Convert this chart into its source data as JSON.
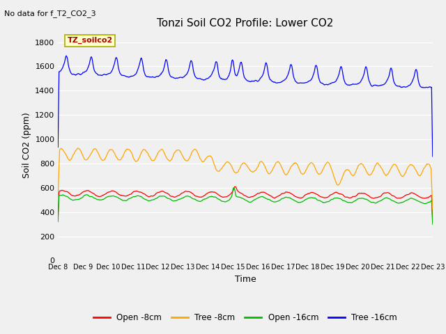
{
  "title": "Tonzi Soil CO2 Profile: Lower CO2",
  "top_left_text": "No data for f_T2_CO2_3",
  "ylabel": "Soil CO2 (ppm)",
  "xlabel": "Time",
  "legend_box_text": "TZ_soilco2",
  "ylim": [
    0,
    1900
  ],
  "yticks": [
    0,
    200,
    400,
    600,
    800,
    1000,
    1200,
    1400,
    1600,
    1800
  ],
  "xtick_labels": [
    "Dec 8",
    "Dec 9",
    "Dec 10",
    "Dec 11",
    "Dec 12",
    "Dec 13",
    "Dec 14",
    "Dec 15",
    "Dec 16",
    "Dec 17",
    "Dec 18",
    "Dec 19",
    "Dec 20",
    "Dec 21",
    "Dec 22",
    "Dec 23"
  ],
  "bg_color": "#f0f0f0",
  "plot_bg_color": "#f0f0f0",
  "legend_entries": [
    {
      "label": "Open -8cm",
      "color": "#ff0000"
    },
    {
      "label": "Tree -8cm",
      "color": "#ffa500"
    },
    {
      "label": "Open -16cm",
      "color": "#00bb00"
    },
    {
      "label": "Tree -16cm",
      "color": "#0000ff"
    }
  ],
  "figsize": [
    6.4,
    4.8
  ],
  "dpi": 100
}
